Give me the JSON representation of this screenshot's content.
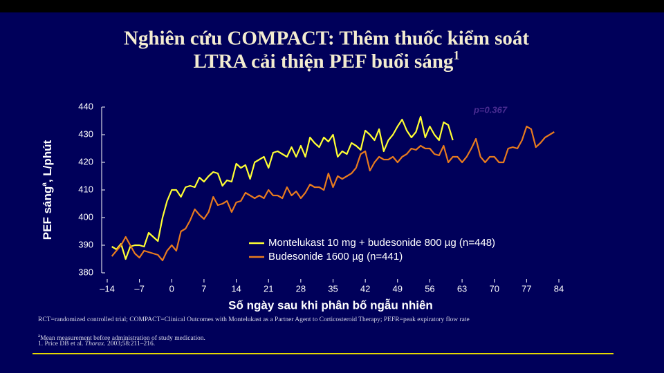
{
  "chart_data": {
    "type": "line",
    "title_lines": [
      "Nghiên cứu COMPACT: Thêm thuốc kiểm soát",
      "LTRA cải thiện PEF buổi sáng"
    ],
    "title_sup": "1",
    "y_label": "PEF sáng",
    "y_label_sup": "a",
    "y_label_suffix": ", L/phút",
    "x_label": "Số ngày sau khi phân bố ngẫu nhiên",
    "annotation": "p=0.367",
    "x": [
      -13,
      -12,
      -11,
      -10,
      -9,
      -8,
      -7,
      -6,
      -5,
      -4,
      -3,
      -2,
      -1,
      0,
      1,
      2,
      3,
      4,
      5,
      6,
      7,
      8,
      9,
      10,
      11,
      12,
      13,
      14,
      15,
      16,
      17,
      18,
      19,
      20,
      21,
      22,
      23,
      24,
      25,
      26,
      27,
      28,
      29,
      30,
      31,
      32,
      33,
      34,
      35,
      36,
      37,
      38,
      39,
      40,
      41,
      42,
      43,
      44,
      45,
      46,
      47,
      48,
      49,
      50,
      51,
      52,
      53,
      54,
      55,
      56,
      57,
      58,
      59,
      60,
      61,
      62,
      63,
      64,
      65,
      66,
      67,
      68,
      69,
      70,
      71,
      72,
      73,
      74,
      75,
      76,
      77,
      78,
      79,
      80,
      81,
      82,
      83
    ],
    "series": [
      {
        "name": "Montelukast 10 mg + budesonide 800 µg (n=448)",
        "color": "#ffff33",
        "values": [
          389.5,
          388.5,
          390.5,
          385,
          389.5,
          390,
          390,
          389.5,
          394.5,
          393,
          391.5,
          400,
          406,
          410,
          410,
          407.5,
          411,
          411.5,
          411,
          414.5,
          413,
          415,
          416.5,
          416,
          411.5,
          413.5,
          413,
          419.5,
          418,
          419,
          414,
          420,
          421,
          422,
          418,
          423.5,
          424,
          423,
          422,
          425.5,
          422,
          426,
          422,
          429,
          427,
          425.5,
          429,
          427.5,
          430,
          422,
          424,
          423,
          427,
          426,
          424.5,
          431.5,
          430,
          428,
          432,
          424,
          428,
          430,
          433,
          435.5,
          431.5,
          429,
          431,
          436.5,
          429,
          433,
          430,
          428,
          434.5,
          433.5,
          428,
          null,
          null,
          null,
          null,
          null,
          null,
          null,
          null,
          null,
          null,
          null,
          null,
          null,
          null,
          null,
          null,
          null,
          null,
          null,
          null,
          null,
          null
        ]
      },
      {
        "name": "Budesonide 1600 µg (n=441)",
        "color": "#e87b1e",
        "values": [
          386,
          388,
          390,
          393,
          390,
          387,
          385.5,
          388,
          387.5,
          387,
          386.5,
          384.5,
          388,
          390,
          388,
          395,
          396,
          399,
          403,
          401,
          399.5,
          402,
          407.5,
          404.5,
          405,
          406,
          402,
          405.5,
          406,
          409,
          408,
          407,
          408,
          407,
          410,
          408,
          408,
          407,
          411,
          408,
          409.5,
          407,
          409,
          412,
          411,
          411,
          410,
          416,
          411,
          415,
          414,
          415,
          416,
          418,
          423,
          424,
          417,
          420,
          422,
          421,
          421,
          422,
          420,
          422,
          423,
          425,
          424.5,
          426,
          425,
          425,
          423,
          422.5,
          426,
          420,
          422,
          422,
          420,
          422,
          425,
          428.5,
          422,
          420,
          422,
          422,
          420,
          420,
          425,
          425.5,
          425,
          428,
          433,
          432,
          425.5,
          427,
          429,
          430,
          431
        ]
      }
    ],
    "xlim": [
      -14,
      84
    ],
    "xticks": [
      {
        "value": -14,
        "label": "–14"
      },
      {
        "value": -7,
        "label": "–7"
      },
      0,
      7,
      14,
      21,
      28,
      35,
      42,
      49,
      56,
      63,
      70,
      77,
      84
    ],
    "ylim": [
      380,
      440
    ],
    "yticks": [
      380,
      390,
      400,
      410,
      420,
      430,
      440
    ],
    "legend": "lower-right"
  },
  "footnotes": {
    "line1": "RCT=randomized controlled trial; COMPACT=Clinical Outcomes with Montelukast as a Partner Agent to Corticosteroid Therapy; PEFR=peak expiratory flow rate",
    "line2_sup": "a",
    "line2": "Mean measurement before administration of study medication.",
    "line3_pre": "1. Price DB et al. ",
    "line3_journal": "Thorax",
    "line3_post": ". 2003;58:211–216."
  }
}
